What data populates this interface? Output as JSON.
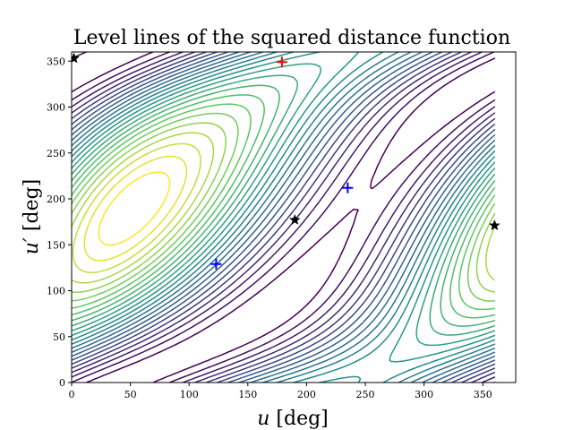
{
  "chart_data": {
    "type": "contour",
    "title": "Level lines of the squared distance function",
    "xlabel_var": "u",
    "xlabel_unit": "[deg]",
    "ylabel_var": "u′",
    "ylabel_unit": "[deg]",
    "xlim": [
      0,
      378
    ],
    "ylim": [
      0,
      360
    ],
    "xticks": [
      0,
      50,
      100,
      150,
      200,
      250,
      300,
      350
    ],
    "yticks": [
      0,
      50,
      100,
      150,
      200,
      250,
      300,
      350
    ],
    "grid": false,
    "colormap": "viridis",
    "colormap_colors": [
      "#440154",
      "#3b528b",
      "#21918c",
      "#5ec962",
      "#fde725"
    ],
    "contour_domain": {
      "u": [
        0,
        360
      ],
      "u_prime": [
        0,
        360
      ]
    },
    "markers": [
      {
        "kind": "star",
        "color": "#000000",
        "u": 2,
        "u_prime": 353
      },
      {
        "kind": "star",
        "color": "#000000",
        "u": 190,
        "u_prime": 177
      },
      {
        "kind": "star",
        "color": "#000000",
        "u": 360,
        "u_prime": 171
      },
      {
        "kind": "plus",
        "color": "#0000ff",
        "u": 123,
        "u_prime": 129
      },
      {
        "kind": "plus",
        "color": "#0000ff",
        "u": 235,
        "u_prime": 212
      },
      {
        "kind": "plus",
        "color": "#ff0000",
        "u": 179,
        "u_prime": 349
      }
    ]
  }
}
